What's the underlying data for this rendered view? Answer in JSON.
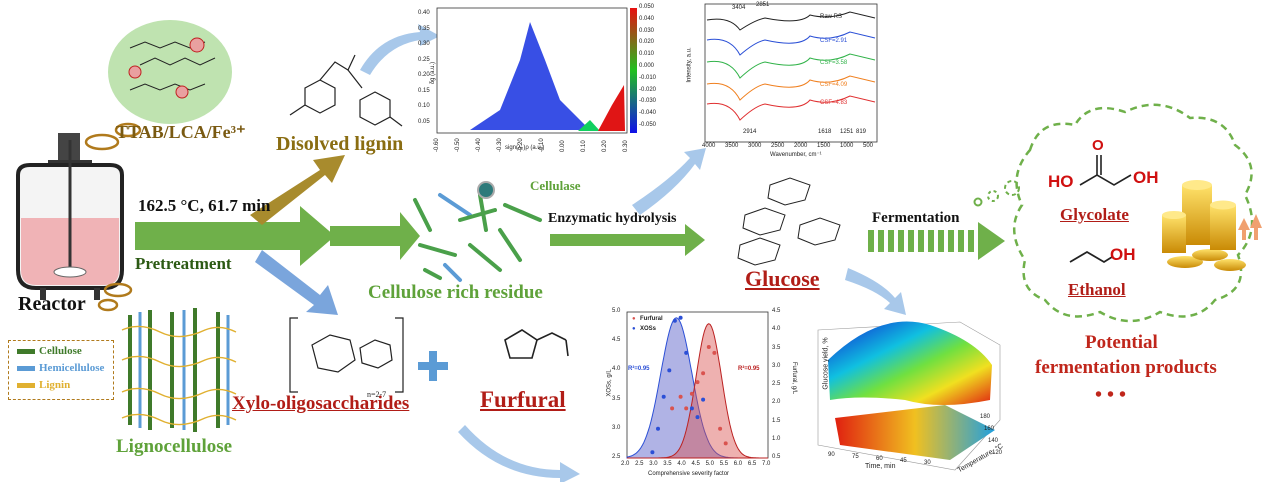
{
  "reactor": {
    "label": "Reactor"
  },
  "catalyst": {
    "label": "TTAB/LCA/Fe³⁺"
  },
  "pretreatment": {
    "condition": "162.5 °C, 61.7 min",
    "label": "Pretreatment"
  },
  "lignin": {
    "label": "Disolved lignin"
  },
  "cellulose_residue": {
    "label": "Cellulose rich residue",
    "enzyme_label": "Cellulase"
  },
  "hydrolysis": {
    "label": "Enzymatic hydrolysis"
  },
  "glucose": {
    "label": "Glucose"
  },
  "fermentation": {
    "label": "Fermentation"
  },
  "products": {
    "items": [
      "Glycolate",
      "Ethanol"
    ],
    "caption_line1": "Potential",
    "caption_line2": "fermentation products",
    "ellipsis": "• • •"
  },
  "xos": {
    "label": "Xylo-oligosaccharides",
    "n_label": "n=2-7"
  },
  "furfural": {
    "label": "Furfural"
  },
  "plus": "+",
  "lignocellulose": {
    "label": "Lignocellulose",
    "legend": [
      "Cellulose",
      "Hemicellulose",
      "Lignin"
    ],
    "colors": {
      "cellulose": "#3f7a2a",
      "hemicellulose": "#5b9bd5",
      "lignin": "#e0b030"
    }
  },
  "igm_plot": {
    "ylabel": "δg (a.u.)",
    "xlabel": "sign(λ₂)ρ (a.u.)",
    "xticks": [
      "-0.60",
      "-0.50",
      "-0.40",
      "-0.30",
      "-0.20",
      "-0.10",
      "0.00",
      "0.10",
      "0.20",
      "0.30"
    ],
    "yticks": [
      "0.40",
      "0.35",
      "0.30",
      "0.25",
      "0.20",
      "0.15",
      "0.10",
      "0.05"
    ],
    "colorbar": [
      "0.050",
      "0.040",
      "0.030",
      "0.020",
      "0.010",
      "0.000",
      "-0.010",
      "-0.020",
      "-0.030",
      "-0.040",
      "-0.050"
    ]
  },
  "ftir_plot": {
    "ylabel": "Intensity, a.u.",
    "xlabel": "Wavenumber, cm⁻¹",
    "xticks": [
      "4000",
      "3500",
      "3000",
      "2500",
      "2000",
      "1500",
      "1000",
      "500"
    ],
    "peaks_top": [
      "3404",
      "2851"
    ],
    "peaks_bottom": [
      "2914",
      "1618",
      "1251",
      "819"
    ],
    "series": [
      "Raw RS",
      "CSF=2.91",
      "CSF=3.58",
      "CSF=4.09",
      "CSF=4.83"
    ],
    "colors": [
      "#222222",
      "#2a4fd6",
      "#32b34a",
      "#f08020",
      "#e03030"
    ]
  },
  "chart_data": [
    {
      "type": "area",
      "title": "",
      "xlabel": "Comprehensive severity factor",
      "ylabel": "XOSs, g/L",
      "ylabel2": "Furfural, g/L",
      "xlim": [
        2.0,
        7.0
      ],
      "ylim": [
        2.5,
        5.0
      ],
      "ylim2": [
        0.5,
        4.5
      ],
      "xticks": [
        "2.0",
        "2.5",
        "3.0",
        "3.5",
        "4.0",
        "4.5",
        "5.0",
        "5.5",
        "6.0",
        "6.5",
        "7.0"
      ],
      "yticks": [
        "2.5",
        "3.0",
        "3.5",
        "4.0",
        "4.5",
        "5.0"
      ],
      "yticks2": [
        "0.5",
        "1.0",
        "1.5",
        "2.0",
        "2.5",
        "3.0",
        "3.5",
        "4.0",
        "4.5"
      ],
      "annotations": [
        "R²=0.95",
        "R²=0.95"
      ],
      "series": [
        {
          "name": "Furfural",
          "color": "#d9534f",
          "points": [
            [
              3.6,
              3.35
            ],
            [
              3.9,
              3.55
            ],
            [
              4.1,
              3.35
            ],
            [
              4.3,
              3.6
            ],
            [
              4.5,
              3.8
            ],
            [
              4.7,
              3.95
            ],
            [
              4.9,
              4.4
            ],
            [
              5.1,
              4.3
            ],
            [
              5.3,
              3.0
            ],
            [
              5.5,
              2.75
            ]
          ]
        },
        {
          "name": "XOSs",
          "color": "#2b4fd6",
          "points": [
            [
              2.9,
              2.6
            ],
            [
              3.1,
              3.0
            ],
            [
              3.3,
              3.55
            ],
            [
              3.5,
              4.0
            ],
            [
              3.7,
              4.85
            ],
            [
              3.9,
              4.9
            ],
            [
              4.1,
              4.3
            ],
            [
              4.3,
              3.35
            ],
            [
              4.5,
              3.2
            ],
            [
              4.7,
              3.5
            ]
          ]
        }
      ]
    },
    {
      "type": "surface",
      "title": "",
      "xlabel": "Time, min",
      "ylabel": "Temperature, °C",
      "zlabel": "Glucose yield, %",
      "xticks": [
        "90",
        "75",
        "60",
        "45",
        "30"
      ],
      "yticks": [
        "120",
        "140",
        "160",
        "180"
      ]
    }
  ]
}
